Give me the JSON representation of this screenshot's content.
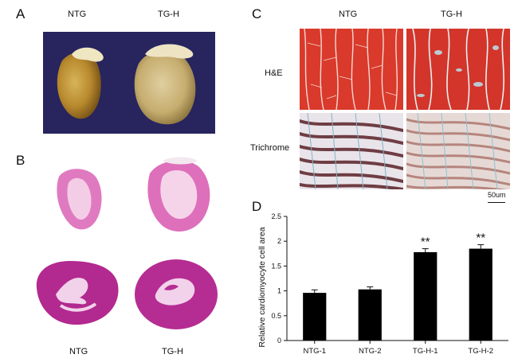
{
  "panel_a": {
    "letter": "A",
    "label_left": "NTG",
    "label_right": "TG-H"
  },
  "panel_b": {
    "letter": "B",
    "label_left": "NTG",
    "label_right": "TG-H"
  },
  "panel_c": {
    "letter": "C",
    "col_left": "NTG",
    "col_right": "TG-H",
    "row_top": "H&E",
    "row_bottom": "Trichrome",
    "scale_bar": "50um"
  },
  "panel_d": {
    "letter": "D"
  },
  "colors": {
    "bar": "#000000",
    "hne_tissue": "#d93a2b",
    "trichrome_bg": "#e8dfe3",
    "slide_bg": "#27245e",
    "stain_pink": "#d24bb0"
  },
  "chart_data": {
    "type": "bar",
    "categories": [
      "NTG-1",
      "NTG-2",
      "TG-H-1",
      "TG-H-2"
    ],
    "values": [
      0.96,
      1.03,
      1.78,
      1.85
    ],
    "errors": [
      0.06,
      0.05,
      0.07,
      0.08
    ],
    "annotations": [
      "",
      "",
      "**",
      "**"
    ],
    "ylabel": "Relative cardiomyocyte cell area",
    "ylim": [
      0,
      2.5
    ],
    "yticks": [
      "0",
      "0.5",
      "1",
      "1.5",
      "2",
      "2.5"
    ],
    "title": "",
    "xlabel": "",
    "grid": false
  }
}
